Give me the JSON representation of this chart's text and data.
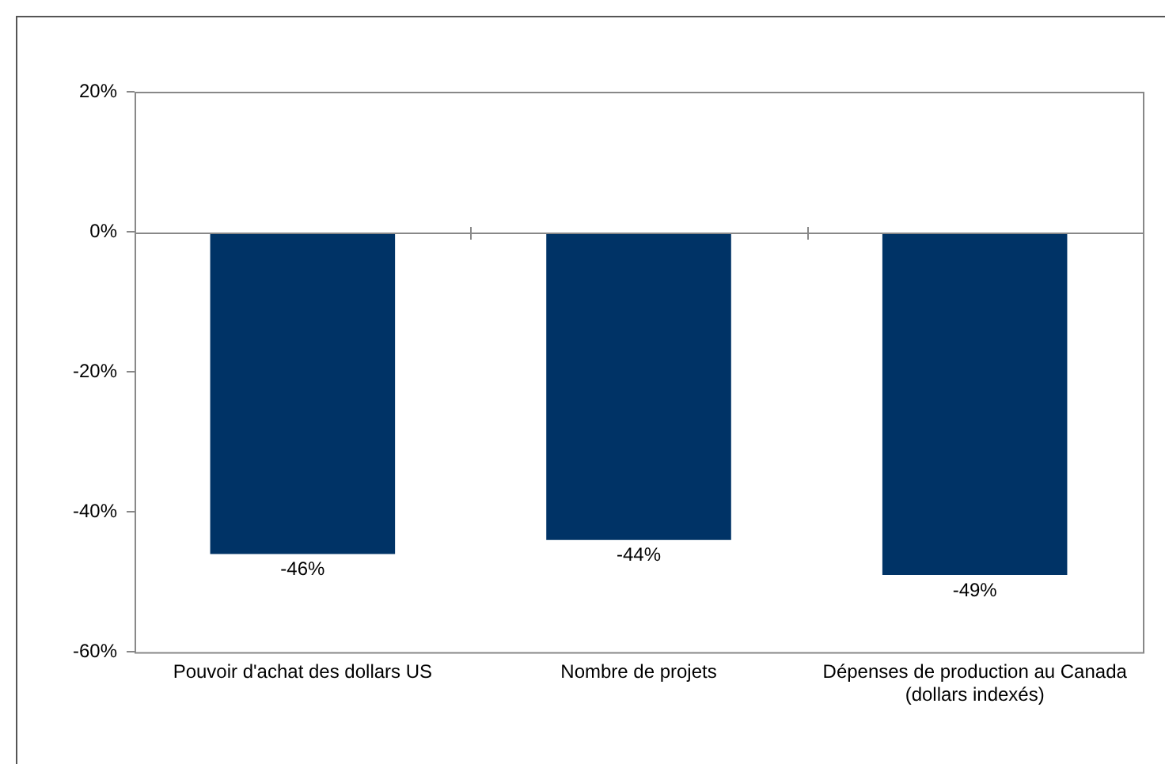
{
  "chart_data": {
    "type": "bar",
    "categories": [
      "Pouvoir d'achat des dollars US",
      "Nombre de projets",
      "Dépenses de production au Canada (dollars indexés)"
    ],
    "values": [
      -46,
      -44,
      -49
    ],
    "value_labels": [
      "-46%",
      "-44%",
      "-49%"
    ],
    "color": "#003366",
    "ylim": [
      -60,
      20
    ],
    "yticks": [
      {
        "value": -60,
        "label": "-60%"
      },
      {
        "value": -40,
        "label": "-40%"
      },
      {
        "value": -20,
        "label": "-20%"
      },
      {
        "value": 0,
        "label": "0%"
      },
      {
        "value": 20,
        "label": "20%"
      }
    ],
    "ref_lines": [
      {
        "axis": "y",
        "value": 0,
        "color": "#888888"
      }
    ],
    "legend": false
  }
}
